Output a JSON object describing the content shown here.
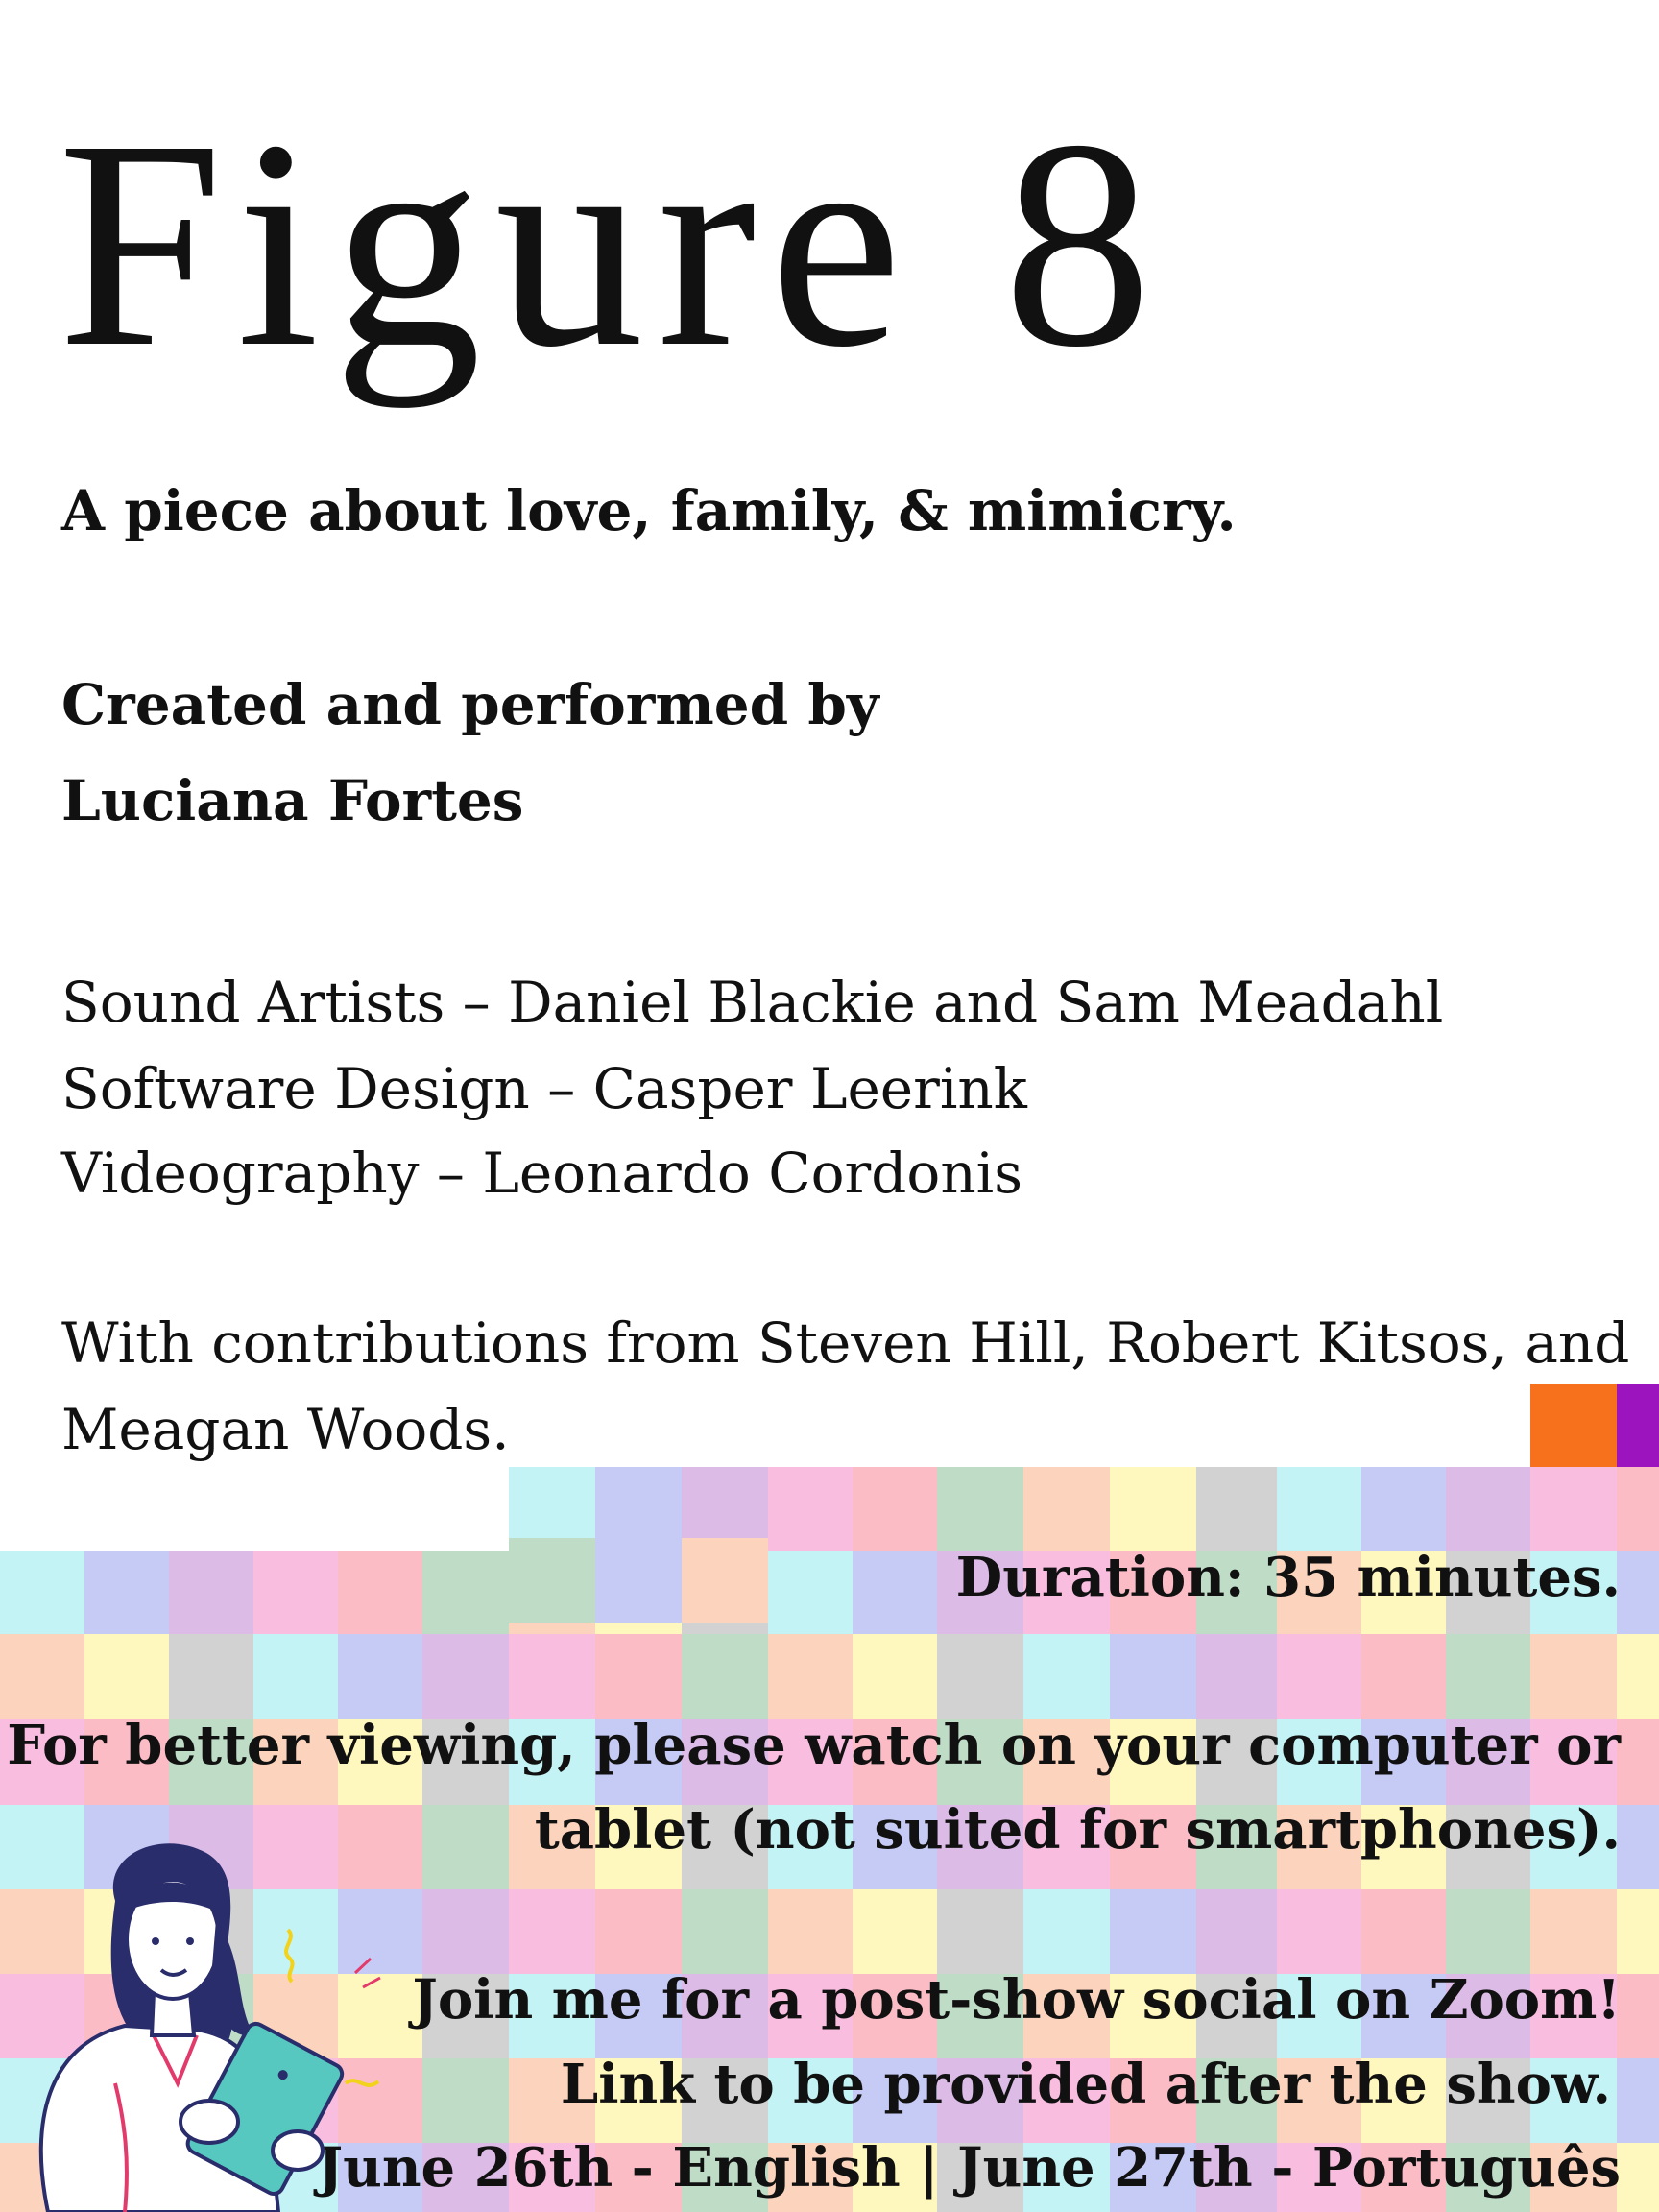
{
  "poster": {
    "title": "Figure 8",
    "tagline": "A piece about love, family, & mimicry.",
    "created_line1": "Created and performed by",
    "created_line2": "Luciana Fortes",
    "credits": [
      "Sound Artists – Daniel Blackie and Sam Meadahl",
      "Software Design – Casper Leerink",
      "Videography – Leonardo Cordonis"
    ],
    "contributions_line1": "With contributions from Steven Hill, Robert Kitsos, and",
    "contributions_line2": "Meagan Woods.",
    "duration": "Duration: 35 minutes.",
    "viewing_line1": "For better viewing, please watch on your computer or",
    "viewing_line2": "tablet (not suited for smartphones).",
    "social_line1": "Join me for a post-show social on Zoom!",
    "social_line2": "Link to be provided after the show.",
    "dates": "June 26th - English | June 27th - Português"
  },
  "colors": {
    "orange": "#f7701c",
    "purple": "#9b14be",
    "yellow": "#fcee14",
    "magenta": "#f51aa6",
    "pastel_peach": "#fcd4bd",
    "pastel_lavender": "#dcbbe7",
    "pastel_yellow": "#fff8be",
    "pastel_pink": "#f9bde0",
    "pastel_gray": "#d2d2d2",
    "pastel_salmon": "#fbbcc6",
    "pastel_cyan": "#c4f3f5",
    "pastel_green": "#bedcc6",
    "pastel_periwinkle": "#c6cbf5",
    "illustration_hair": "#2a2d6b",
    "illustration_tablet": "#56c8c0"
  },
  "illustration": {
    "icon": "woman-holding-tablet-icon"
  }
}
